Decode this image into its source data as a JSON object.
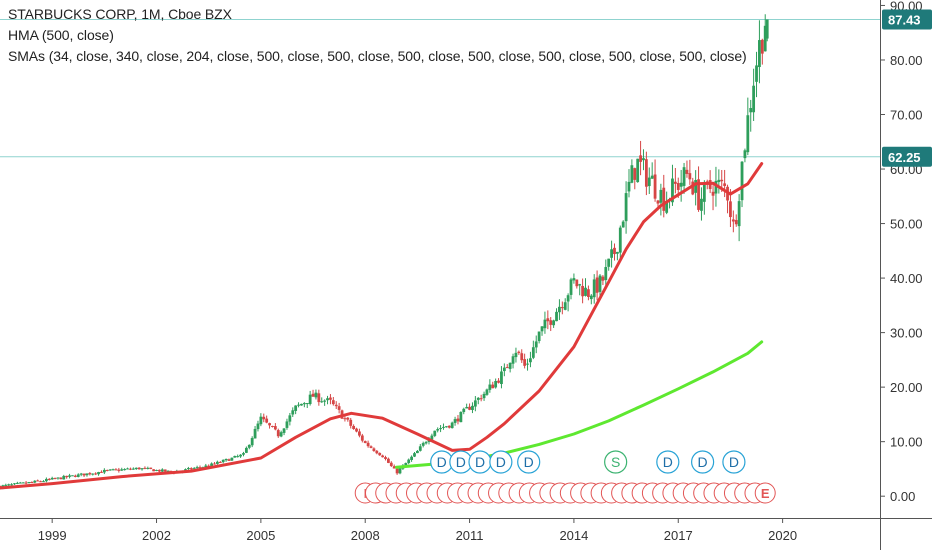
{
  "header": {
    "title": "STARBUCKS CORP, 1M, Cboe BZX",
    "indicator_1": "HMA (500, close)",
    "indicator_2": "SMAs (34, close, 340, close, 204, close, 500, close, 500, close, 500, close, 500, close, 500, close, 500, close, 500, close)"
  },
  "colors": {
    "up_candle": "#2e9e5b",
    "down_candle": "#d64545",
    "hma_line": "#e03a3a",
    "sma_line": "#5ee830",
    "price_line": "#8fd3cf",
    "price_label_bg": "#1f7a7a",
    "marker_stroke": "#29a3d6",
    "earnings_stroke": "#e25555",
    "split_stroke": "#3cb371",
    "axis_text": "#333333",
    "grid": "#ffffff",
    "border": "#555555"
  },
  "chart_data": {
    "type": "line",
    "title": "STARBUCKS CORP, 1M, Cboe BZX",
    "ylim": [
      -4,
      91
    ],
    "xlim": [
      1997.5,
      2022.8
    ],
    "y_ticks": [
      "0.00",
      "10.00",
      "20.00",
      "30.00",
      "40.00",
      "50.00",
      "60.00",
      "70.00",
      "80.00",
      "90.00"
    ],
    "y_tick_values": [
      0,
      10,
      20,
      30,
      40,
      50,
      60,
      70,
      80,
      90
    ],
    "x_ticks": [
      "1999",
      "2002",
      "2005",
      "2008",
      "2011",
      "2014",
      "2017",
      "2020"
    ],
    "x_tick_values": [
      1999,
      2002,
      2005,
      2008,
      2011,
      2014,
      2017,
      2020
    ],
    "grid": false,
    "price_lines": [
      {
        "label": "87.43",
        "value": 87.43
      },
      {
        "label": "62.25",
        "value": 62.25
      }
    ],
    "series": [
      {
        "name": "Price",
        "style": "candles",
        "x": [
          1997.5,
          1998.5,
          1999.5,
          2000.5,
          2001.5,
          2002.5,
          2003.5,
          2004.5,
          2005.0,
          2005.5,
          2006.0,
          2006.5,
          2007.0,
          2007.5,
          2008.0,
          2008.5,
          2008.9,
          2009.5,
          2010.0,
          2010.5,
          2011.0,
          2011.5,
          2012.0,
          2012.3,
          2012.6,
          2013.0,
          2013.5,
          2014.0,
          2014.4,
          2014.8,
          2015.2,
          2015.6,
          2015.8,
          2016.2,
          2016.6,
          2017.0,
          2017.3,
          2017.6,
          2018.0,
          2018.4,
          2018.6,
          2018.9,
          2019.2,
          2019.5
        ],
        "y": [
          1.8,
          2.6,
          3.6,
          4.6,
          5.1,
          4.4,
          5.6,
          7.6,
          14.2,
          11.3,
          16.2,
          18.4,
          17.2,
          13.6,
          9.7,
          7.4,
          4.3,
          8.2,
          12.2,
          13.3,
          16.4,
          19.3,
          22.8,
          27.3,
          23.6,
          29.7,
          34.2,
          39.3,
          37.3,
          39.2,
          45.3,
          57.3,
          61.2,
          58.1,
          54.4,
          57.4,
          59.2,
          54.3,
          57.2,
          56.3,
          48.7,
          64.3,
          78.4,
          87.4
        ]
      },
      {
        "name": "HMA",
        "x": [
          1997.5,
          1999.0,
          2001.0,
          2003.0,
          2005.0,
          2006.0,
          2007.0,
          2007.6,
          2008.5,
          2009.5,
          2010.5,
          2011.0,
          2011.5,
          2012.0,
          2013.0,
          2014.0,
          2015.0,
          2015.5,
          2016.0,
          2016.5,
          2017.0,
          2017.5,
          2018.0,
          2018.5,
          2019.0,
          2019.4
        ],
        "y": [
          1.5,
          2.3,
          3.6,
          4.6,
          7.0,
          10.8,
          14.2,
          15.2,
          14.3,
          11.4,
          8.4,
          8.6,
          10.8,
          13.3,
          19.3,
          27.4,
          39.3,
          45.3,
          50.3,
          53.3,
          55.3,
          57.3,
          57.4,
          55.4,
          57.3,
          61.0
        ]
      },
      {
        "name": "SMA",
        "x": [
          2008.9,
          2010.0,
          2011.0,
          2012.0,
          2013.0,
          2014.0,
          2015.0,
          2016.0,
          2017.0,
          2018.0,
          2019.0,
          2019.4
        ],
        "y": [
          5.3,
          5.9,
          6.7,
          7.9,
          9.5,
          11.4,
          13.8,
          16.7,
          19.7,
          22.8,
          26.2,
          28.3
        ]
      }
    ],
    "event_markers": {
      "dividends": [
        {
          "x": 2010.2,
          "label": "D"
        },
        {
          "x": 2010.75,
          "label": "D"
        },
        {
          "x": 2011.3,
          "label": "D"
        },
        {
          "x": 2011.9,
          "label": "D"
        },
        {
          "x": 2012.7,
          "label": "D"
        },
        {
          "x": 2015.2,
          "label": "S"
        },
        {
          "x": 2016.7,
          "label": "D"
        },
        {
          "x": 2017.7,
          "label": "D"
        },
        {
          "x": 2018.6,
          "label": "D"
        }
      ],
      "earnings": {
        "first_label": "I",
        "last_label": "E",
        "count": 40,
        "x_start": 2008.0,
        "x_end": 2019.5
      }
    }
  }
}
